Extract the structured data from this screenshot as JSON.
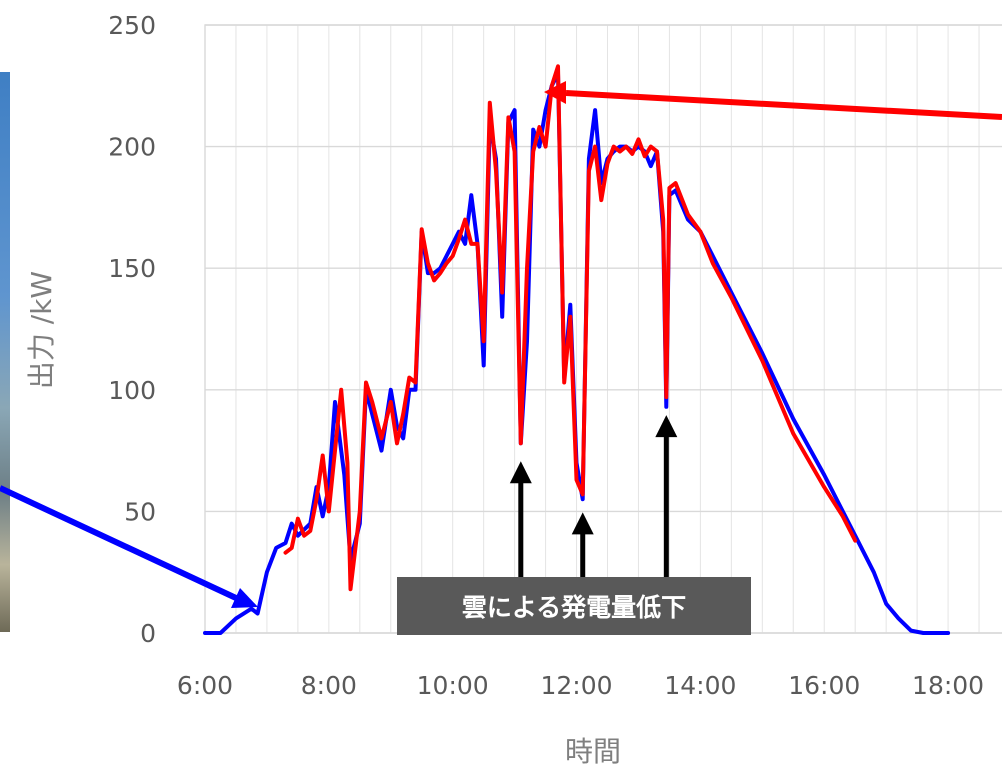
{
  "chart_data": {
    "type": "line",
    "xlabel": "時間",
    "ylabel": "出力 /kW",
    "xlim": [
      6,
      19
    ],
    "ylim": [
      0,
      250
    ],
    "x_ticks": [
      "6:00",
      "8:00",
      "10:00",
      "12:00",
      "14:00",
      "16:00",
      "18:00"
    ],
    "y_ticks": [
      "0",
      "50",
      "100",
      "150",
      "200",
      "250"
    ],
    "grid": true,
    "series": [
      {
        "color": "#0000ff",
        "points": [
          [
            6.0,
            0
          ],
          [
            6.25,
            0
          ],
          [
            6.5,
            6
          ],
          [
            6.75,
            10
          ],
          [
            6.85,
            8
          ],
          [
            7.0,
            25
          ],
          [
            7.15,
            35
          ],
          [
            7.3,
            37
          ],
          [
            7.4,
            45
          ],
          [
            7.5,
            40
          ],
          [
            7.7,
            45
          ],
          [
            7.8,
            60
          ],
          [
            7.9,
            48
          ],
          [
            8.0,
            60
          ],
          [
            8.1,
            95
          ],
          [
            8.25,
            65
          ],
          [
            8.35,
            30
          ],
          [
            8.5,
            45
          ],
          [
            8.6,
            100
          ],
          [
            8.7,
            90
          ],
          [
            8.85,
            75
          ],
          [
            9.0,
            100
          ],
          [
            9.1,
            85
          ],
          [
            9.2,
            80
          ],
          [
            9.3,
            100
          ],
          [
            9.4,
            100
          ],
          [
            9.5,
            165
          ],
          [
            9.6,
            148
          ],
          [
            9.7,
            148
          ],
          [
            9.8,
            150
          ],
          [
            9.9,
            155
          ],
          [
            10.0,
            160
          ],
          [
            10.1,
            165
          ],
          [
            10.2,
            160
          ],
          [
            10.3,
            180
          ],
          [
            10.4,
            160
          ],
          [
            10.5,
            110
          ],
          [
            10.6,
            210
          ],
          [
            10.7,
            195
          ],
          [
            10.8,
            130
          ],
          [
            10.9,
            210
          ],
          [
            11.0,
            215
          ],
          [
            11.1,
            78
          ],
          [
            11.2,
            120
          ],
          [
            11.3,
            207
          ],
          [
            11.4,
            200
          ],
          [
            11.5,
            215
          ],
          [
            11.6,
            225
          ],
          [
            11.7,
            230
          ],
          [
            11.8,
            105
          ],
          [
            11.9,
            135
          ],
          [
            12.0,
            70
          ],
          [
            12.1,
            55
          ],
          [
            12.2,
            195
          ],
          [
            12.3,
            215
          ],
          [
            12.4,
            185
          ],
          [
            12.5,
            195
          ],
          [
            12.6,
            198
          ],
          [
            12.7,
            200
          ],
          [
            12.8,
            200
          ],
          [
            12.9,
            198
          ],
          [
            13.0,
            200
          ],
          [
            13.1,
            198
          ],
          [
            13.2,
            192
          ],
          [
            13.3,
            198
          ],
          [
            13.4,
            165
          ],
          [
            13.45,
            93
          ],
          [
            13.5,
            180
          ],
          [
            13.6,
            182
          ],
          [
            13.8,
            170
          ],
          [
            14.0,
            165
          ],
          [
            14.2,
            155
          ],
          [
            14.5,
            140
          ],
          [
            15.0,
            115
          ],
          [
            15.5,
            88
          ],
          [
            16.0,
            65
          ],
          [
            16.5,
            40
          ],
          [
            16.8,
            25
          ],
          [
            17.0,
            12
          ],
          [
            17.2,
            6
          ],
          [
            17.4,
            1
          ],
          [
            17.6,
            0
          ],
          [
            18.0,
            0
          ]
        ]
      },
      {
        "color": "#ff0000",
        "points": [
          [
            7.3,
            33
          ],
          [
            7.4,
            35
          ],
          [
            7.5,
            47
          ],
          [
            7.6,
            40
          ],
          [
            7.7,
            42
          ],
          [
            7.8,
            55
          ],
          [
            7.9,
            73
          ],
          [
            8.0,
            50
          ],
          [
            8.1,
            75
          ],
          [
            8.2,
            100
          ],
          [
            8.3,
            70
          ],
          [
            8.35,
            18
          ],
          [
            8.5,
            50
          ],
          [
            8.6,
            103
          ],
          [
            8.7,
            95
          ],
          [
            8.85,
            80
          ],
          [
            9.0,
            95
          ],
          [
            9.1,
            78
          ],
          [
            9.2,
            90
          ],
          [
            9.3,
            105
          ],
          [
            9.4,
            103
          ],
          [
            9.5,
            166
          ],
          [
            9.6,
            152
          ],
          [
            9.7,
            145
          ],
          [
            9.8,
            148
          ],
          [
            9.9,
            152
          ],
          [
            10.0,
            155
          ],
          [
            10.1,
            162
          ],
          [
            10.2,
            170
          ],
          [
            10.3,
            160
          ],
          [
            10.4,
            160
          ],
          [
            10.5,
            120
          ],
          [
            10.6,
            218
          ],
          [
            10.7,
            190
          ],
          [
            10.8,
            140
          ],
          [
            10.9,
            212
          ],
          [
            11.0,
            198
          ],
          [
            11.1,
            78
          ],
          [
            11.2,
            150
          ],
          [
            11.3,
            198
          ],
          [
            11.4,
            208
          ],
          [
            11.5,
            200
          ],
          [
            11.6,
            225
          ],
          [
            11.7,
            233
          ],
          [
            11.8,
            103
          ],
          [
            11.9,
            130
          ],
          [
            12.0,
            63
          ],
          [
            12.1,
            57
          ],
          [
            12.2,
            190
          ],
          [
            12.3,
            200
          ],
          [
            12.4,
            178
          ],
          [
            12.5,
            193
          ],
          [
            12.6,
            200
          ],
          [
            12.7,
            198
          ],
          [
            12.8,
            200
          ],
          [
            12.9,
            197
          ],
          [
            13.0,
            203
          ],
          [
            13.1,
            196
          ],
          [
            13.2,
            200
          ],
          [
            13.3,
            198
          ],
          [
            13.4,
            170
          ],
          [
            13.45,
            97
          ],
          [
            13.5,
            183
          ],
          [
            13.6,
            185
          ],
          [
            13.8,
            172
          ],
          [
            14.0,
            165
          ],
          [
            14.2,
            152
          ],
          [
            14.5,
            138
          ],
          [
            15.0,
            112
          ],
          [
            15.5,
            82
          ],
          [
            16.0,
            60
          ],
          [
            16.3,
            48
          ],
          [
            16.5,
            38
          ]
        ]
      }
    ],
    "annotations": {
      "cloud_label": "雲による発電量低下",
      "cloud_dip_times": [
        11.1,
        12.1,
        13.45
      ]
    }
  }
}
